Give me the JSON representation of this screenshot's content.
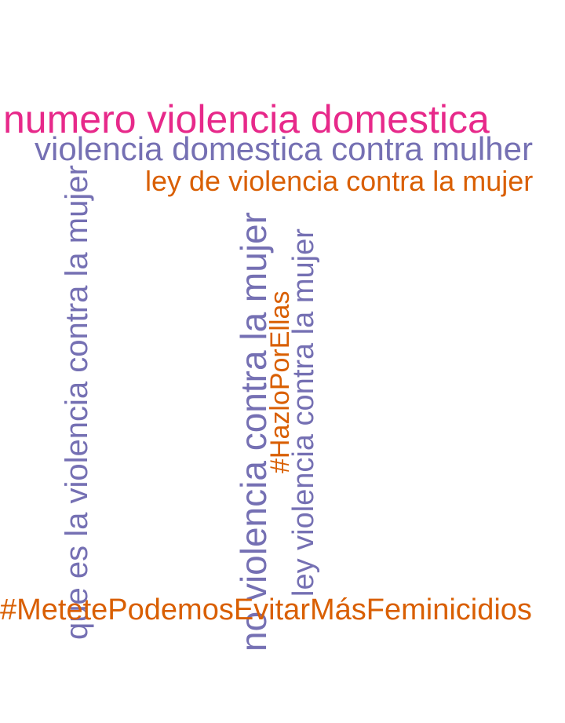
{
  "colors": {
    "magenta": "#e7298a",
    "lavender": "#7570b3",
    "orange": "#d95f02"
  },
  "words": {
    "numero": "numero violencia domestica",
    "mulher": "violencia domestica contra mulher",
    "ley_de": "ley de violencia contra la mujer",
    "metete": "#MetetePodemosEvitarMásFeminicidios",
    "que_es": "que es la violencia contra la mujer",
    "no_violencia": "no violencia contra la mujer",
    "ley_violencia": "ley violencia contra la mujer",
    "hazlo": "#HazloPorEllas"
  }
}
